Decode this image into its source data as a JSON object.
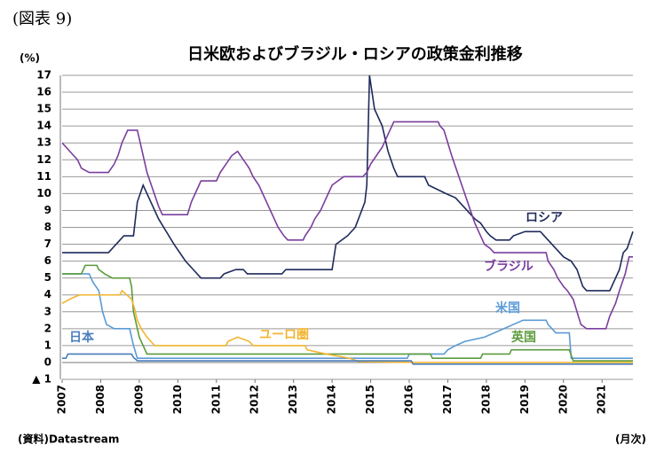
{
  "chart_data": {
    "type": "line",
    "figure_label": "(図表 9)",
    "title": "日米欧およびブラジル・ロシアの政策金利推移",
    "y_unit": "(%)",
    "source": "(資料)Datastream",
    "x_unit": "(月次)",
    "xlim": [
      2007,
      2021.8
    ],
    "xticks": [
      2007,
      2008,
      2009,
      2010,
      2011,
      2012,
      2013,
      2014,
      2015,
      2016,
      2017,
      2018,
      2019,
      2020,
      2021
    ],
    "ylim": [
      -1,
      17
    ],
    "yticks": [
      {
        "value": -1,
        "label": "▲ 1"
      },
      0,
      1,
      2,
      3,
      4,
      5,
      6,
      7,
      8,
      9,
      10,
      11,
      12,
      13,
      14,
      15,
      16,
      17
    ],
    "grid": true,
    "series": [
      {
        "name": "ロシア",
        "color": "#1f2a5c",
        "x": [
          2007,
          2008.2,
          2008.4,
          2008.6,
          2008.85,
          2008.95,
          2009.1,
          2009.3,
          2009.5,
          2009.9,
          2010.2,
          2010.4,
          2010.6,
          2011.1,
          2011.2,
          2011.5,
          2011.7,
          2011.8,
          2012.7,
          2012.8,
          2014.0,
          2014.1,
          2014.4,
          2014.6,
          2014.85,
          2014.9,
          2014.97,
          2015.1,
          2015.3,
          2015.45,
          2015.6,
          2015.7,
          2016.4,
          2016.5,
          2016.95,
          2017.2,
          2017.4,
          2017.5,
          2017.7,
          2017.85,
          2018.0,
          2018.1,
          2018.25,
          2018.6,
          2018.7,
          2019.0,
          2019.4,
          2019.5,
          2019.7,
          2019.9,
          2020.0,
          2020.2,
          2020.35,
          2020.5,
          2020.6,
          2021.2,
          2021.25,
          2021.35,
          2021.45,
          2021.55,
          2021.65,
          2021.8
        ],
        "values": [
          6.5,
          6.5,
          7,
          7.5,
          7.5,
          9.5,
          10.5,
          9.5,
          8.5,
          7,
          6,
          5.5,
          5,
          5,
          5.25,
          5.5,
          5.5,
          5.25,
          5.25,
          5.5,
          5.5,
          7,
          7.5,
          8,
          9.5,
          10.5,
          17,
          15,
          14,
          12.5,
          11.5,
          11,
          11,
          10.5,
          10,
          9.75,
          9.25,
          9,
          8.5,
          8.25,
          7.75,
          7.5,
          7.25,
          7.25,
          7.5,
          7.75,
          7.75,
          7.5,
          7,
          6.5,
          6.25,
          6,
          5.5,
          4.5,
          4.25,
          4.25,
          4.5,
          5,
          5.5,
          6.5,
          6.75,
          7.75
        ]
      },
      {
        "name": "ブラジル",
        "color": "#7a3e9d",
        "x": [
          2007,
          2007.2,
          2007.4,
          2007.5,
          2007.7,
          2008.2,
          2008.35,
          2008.45,
          2008.55,
          2008.7,
          2008.95,
          2009.05,
          2009.2,
          2009.35,
          2009.5,
          2009.6,
          2010.25,
          2010.35,
          2010.5,
          2010.6,
          2011.0,
          2011.1,
          2011.25,
          2011.4,
          2011.55,
          2011.7,
          2011.85,
          2011.95,
          2012.1,
          2012.25,
          2012.4,
          2012.5,
          2012.6,
          2012.75,
          2012.85,
          2013.25,
          2013.3,
          2013.45,
          2013.55,
          2013.7,
          2013.8,
          2013.9,
          2014.0,
          2014.15,
          2014.3,
          2014.8,
          2014.9,
          2015.0,
          2015.15,
          2015.3,
          2015.4,
          2015.5,
          2015.6,
          2016.75,
          2016.8,
          2016.9,
          2017.0,
          2017.1,
          2017.25,
          2017.4,
          2017.55,
          2017.7,
          2017.85,
          2017.95,
          2018.1,
          2018.2,
          2019.55,
          2019.6,
          2019.75,
          2019.85,
          2020.0,
          2020.1,
          2020.25,
          2020.35,
          2020.45,
          2020.6,
          2021.1,
          2021.2,
          2021.35,
          2021.45,
          2021.6,
          2021.7,
          2021.8
        ],
        "values": [
          13,
          12.5,
          12,
          11.5,
          11.25,
          11.25,
          11.75,
          12.25,
          13,
          13.75,
          13.75,
          12.75,
          11.25,
          10.25,
          9.25,
          8.75,
          8.75,
          9.5,
          10.25,
          10.75,
          10.75,
          11.25,
          11.75,
          12.25,
          12.5,
          12,
          11.5,
          11,
          10.5,
          9.75,
          9,
          8.5,
          8,
          7.5,
          7.25,
          7.25,
          7.5,
          8,
          8.5,
          9,
          9.5,
          10,
          10.5,
          10.75,
          11,
          11,
          11.25,
          11.75,
          12.25,
          12.75,
          13.25,
          13.75,
          14.25,
          14.25,
          14,
          13.75,
          13,
          12.25,
          11.25,
          10.25,
          9.25,
          8.25,
          7.5,
          7,
          6.75,
          6.5,
          6.5,
          6,
          5.5,
          5,
          4.5,
          4.25,
          3.75,
          3,
          2.25,
          2,
          2,
          2.75,
          3.5,
          4.25,
          5.25,
          6.25,
          6.25
        ]
      },
      {
        "name": "米国",
        "color": "#5b9bd5",
        "x": [
          2007,
          2007.7,
          2007.8,
          2007.95,
          2008.05,
          2008.15,
          2008.35,
          2008.75,
          2008.85,
          2008.95,
          2015.95,
          2016.0,
          2016.9,
          2017.0,
          2017.2,
          2017.45,
          2017.95,
          2018.2,
          2018.45,
          2018.7,
          2018.95,
          2019.55,
          2019.6,
          2019.7,
          2019.8,
          2020.15,
          2020.2,
          2021.8
        ],
        "values": [
          5.25,
          5.25,
          4.75,
          4.25,
          3,
          2.25,
          2,
          2,
          1,
          0.25,
          0.25,
          0.5,
          0.5,
          0.75,
          1,
          1.25,
          1.5,
          1.75,
          2,
          2.25,
          2.5,
          2.5,
          2.25,
          2,
          1.75,
          1.75,
          0.25,
          0.25
        ]
      },
      {
        "name": "英国",
        "color": "#5b9b3c",
        "x": [
          2007,
          2007.5,
          2007.55,
          2007.6,
          2007.9,
          2007.95,
          2008.1,
          2008.3,
          2008.75,
          2008.8,
          2008.85,
          2008.95,
          2009.0,
          2009.1,
          2009.2,
          2016.55,
          2016.6,
          2017.85,
          2017.9,
          2018.6,
          2018.65,
          2020.15,
          2020.25,
          2021.8
        ],
        "values": [
          5.25,
          5.25,
          5.5,
          5.75,
          5.75,
          5.5,
          5.25,
          5,
          5,
          4.5,
          3,
          2,
          1.5,
          1,
          0.5,
          0.5,
          0.25,
          0.25,
          0.5,
          0.5,
          0.75,
          0.75,
          0.1,
          0.1
        ]
      },
      {
        "name": "ユーロ圏",
        "color": "#f2b530",
        "x": [
          2007,
          2007.2,
          2007.45,
          2008.5,
          2008.55,
          2008.8,
          2008.87,
          2008.95,
          2009.05,
          2009.2,
          2009.3,
          2009.4,
          2011.25,
          2011.3,
          2011.55,
          2011.85,
          2011.95,
          2013.3,
          2013.35,
          2013.85,
          2014.45,
          2014.7,
          2016.2,
          2021.8
        ],
        "values": [
          3.5,
          3.75,
          4,
          4,
          4.25,
          3.75,
          3.25,
          2.5,
          2,
          1.5,
          1.25,
          1,
          1,
          1.25,
          1.5,
          1.25,
          1,
          1,
          0.75,
          0.5,
          0.25,
          0.05,
          0,
          0
        ]
      },
      {
        "name": "日本",
        "color": "#4a7ebb",
        "x": [
          2007,
          2007.1,
          2007.15,
          2008.8,
          2008.85,
          2008.95,
          2016.05,
          2016.1,
          2021.8
        ],
        "values": [
          0.25,
          0.25,
          0.5,
          0.5,
          0.3,
          0.1,
          0.1,
          -0.1,
          -0.1
        ]
      }
    ]
  }
}
